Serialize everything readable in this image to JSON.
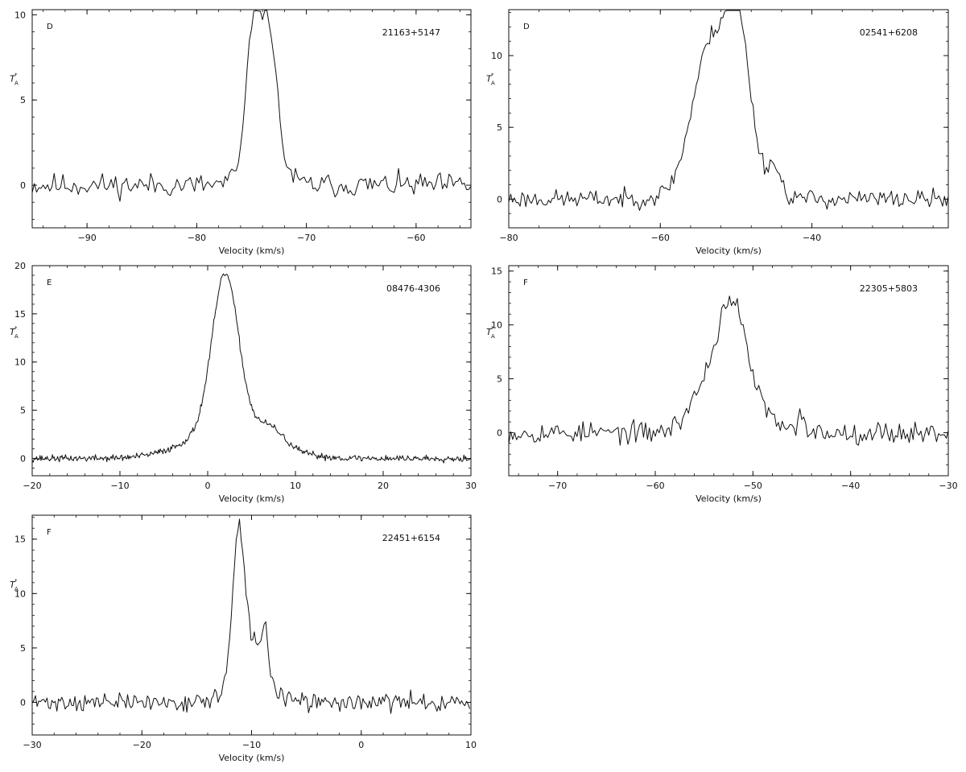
{
  "colors": {
    "ink": "#111111",
    "background": "#ffffff"
  },
  "chart_data": [
    {
      "type": "line",
      "panel_label": "D",
      "source": "21163+5147",
      "xlabel": "Velocity (km/s)",
      "ylabel": "T",
      "ylabel_sup": "*",
      "ylabel_sub": "A",
      "xlim": [
        -95,
        -55
      ],
      "ylim": [
        -2.5,
        10.3
      ],
      "xticks": [
        -90,
        -80,
        -70,
        -60
      ],
      "yticks": [
        0,
        5,
        10
      ],
      "grid": false,
      "profile": {
        "baseline": 0,
        "noise": 0.6,
        "seed": 11,
        "step": 0.2,
        "components": [
          {
            "center": -74.9,
            "amp": 6.6,
            "width": 0.55
          },
          {
            "center": -73.5,
            "amp": 7.0,
            "width": 0.7
          },
          {
            "center": -74.0,
            "amp": 3.2,
            "width": 1.4
          }
        ]
      }
    },
    {
      "type": "line",
      "panel_label": "D",
      "source": "02541+6208",
      "xlabel": "Velocity (km/s)",
      "ylabel": "T",
      "ylabel_sup": "*",
      "ylabel_sub": "A",
      "xlim": [
        -80,
        -22
      ],
      "ylim": [
        -2,
        13.2
      ],
      "xticks": [
        -80,
        -60,
        -40
      ],
      "yticks": [
        0,
        5,
        10
      ],
      "grid": false,
      "profile": {
        "baseline": 0,
        "noise": 0.55,
        "seed": 23,
        "step": 0.25,
        "components": [
          {
            "center": -53.5,
            "amp": 8.5,
            "width": 2.3
          },
          {
            "center": -49.7,
            "amp": 9.0,
            "width": 1.6
          },
          {
            "center": -51.5,
            "amp": 2.5,
            "width": 3.8
          },
          {
            "center": -45.0,
            "amp": 1.8,
            "width": 0.8
          }
        ]
      }
    },
    {
      "type": "line",
      "panel_label": "E",
      "source": "08476-4306",
      "xlabel": "Velocity (km/s)",
      "ylabel": "T",
      "ylabel_sup": "*",
      "ylabel_sub": "A",
      "xlim": [
        -20,
        30
      ],
      "ylim": [
        -1.8,
        20
      ],
      "xticks": [
        -20,
        -10,
        0,
        10,
        20,
        30
      ],
      "yticks": [
        0,
        5,
        10,
        15,
        20
      ],
      "grid": false,
      "profile": {
        "baseline": 0,
        "noise": 0.3,
        "seed": 37,
        "step": 0.1,
        "components": [
          {
            "center": 2.0,
            "amp": 16.0,
            "width": 1.5
          },
          {
            "center": 2.5,
            "amp": 3.2,
            "width": 4.5
          },
          {
            "center": 7.2,
            "amp": 1.5,
            "width": 1.5
          }
        ]
      }
    },
    {
      "type": "line",
      "panel_label": "F",
      "source": "22305+5803",
      "xlabel": "Velocity (km/s)",
      "ylabel": "T",
      "ylabel_sup": "*",
      "ylabel_sub": "A",
      "xlim": [
        -75,
        -30
      ],
      "ylim": [
        -4,
        15.5
      ],
      "xticks": [
        -70,
        -60,
        -50,
        -40,
        -30
      ],
      "yticks": [
        0,
        5,
        10,
        15
      ],
      "grid": false,
      "profile": {
        "baseline": 0,
        "noise": 0.85,
        "seed": 53,
        "step": 0.2,
        "components": [
          {
            "center": -52.2,
            "amp": 9.5,
            "width": 1.3
          },
          {
            "center": -54.5,
            "amp": 4.5,
            "width": 1.8
          },
          {
            "center": -50.0,
            "amp": 3.0,
            "width": 1.5
          },
          {
            "center": -45.0,
            "amp": 2.0,
            "width": 0.3
          }
        ]
      }
    },
    {
      "type": "line",
      "panel_label": "F",
      "source": "22451+6154",
      "xlabel": "Velocity (km/s)",
      "ylabel": "T",
      "ylabel_sup": "*",
      "ylabel_sub": "A",
      "xlim": [
        -30,
        10
      ],
      "ylim": [
        -3,
        17.2
      ],
      "xticks": [
        -30,
        -20,
        -10,
        0,
        10
      ],
      "yticks": [
        0,
        5,
        10,
        15
      ],
      "grid": false,
      "profile": {
        "baseline": 0,
        "noise": 0.7,
        "seed": 71,
        "step": 0.15,
        "components": [
          {
            "center": -11.2,
            "amp": 11.5,
            "width": 0.5
          },
          {
            "center": -10.2,
            "amp": 5.8,
            "width": 1.4
          },
          {
            "center": -8.8,
            "amp": 3.5,
            "width": 0.3
          }
        ]
      }
    }
  ]
}
